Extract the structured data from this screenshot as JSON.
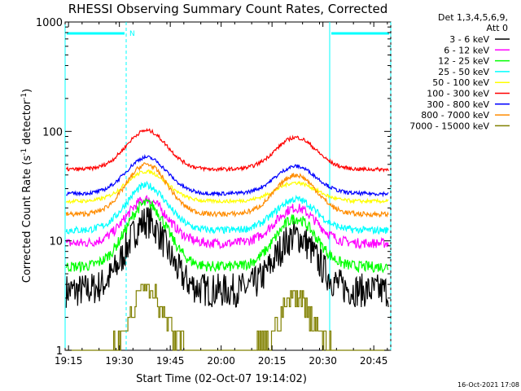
{
  "chart_data": {
    "type": "line",
    "title": "RHESSI Observing Summary Count Rates, Corrected",
    "xlabel": "Start Time (02-Oct-07 19:14:02)",
    "ylabel_main": "Corrected Count Rate (s",
    "ylabel_sup1": "-1",
    "ylabel_mid": " detector",
    "ylabel_sup2": "-1",
    "ylabel_end": ")",
    "ylog": true,
    "xlim_min": [
      0,
      96
    ],
    "ylim": [
      1,
      1000
    ],
    "x_ticks": [
      {
        "label": "19:15",
        "min": 1
      },
      {
        "label": "19:30",
        "min": 16
      },
      {
        "label": "19:45",
        "min": 31
      },
      {
        "label": "20:00",
        "min": 46
      },
      {
        "label": "20:15",
        "min": 61
      },
      {
        "label": "20:30",
        "min": 76
      },
      {
        "label": "20:45",
        "min": 91
      }
    ],
    "y_ticks": [
      {
        "label": "1",
        "value": 1
      },
      {
        "label": "10",
        "value": 10
      },
      {
        "label": "100",
        "value": 100
      },
      {
        "label": "1000",
        "value": 1000
      }
    ],
    "legend_header": [
      "Det 1,3,4,5,6,9,",
      "Att 0"
    ],
    "legend_position": "right",
    "series": [
      {
        "name": "3 - 6 keV",
        "color": "#000000",
        "base": 3.5,
        "peak1": 15,
        "peak2": 11,
        "noise": 0.2
      },
      {
        "name": "6 - 12 keV",
        "color": "#ff00ff",
        "base": 9.5,
        "peak1": 24,
        "peak2": 20,
        "noise": 0.08
      },
      {
        "name": "12 - 25 keV",
        "color": "#00ff00",
        "base": 5.8,
        "peak1": 22,
        "peak2": 16,
        "noise": 0.09
      },
      {
        "name": "25 - 50 keV",
        "color": "#00ffff",
        "base": 12.5,
        "peak1": 32,
        "peak2": 24,
        "noise": 0.06
      },
      {
        "name": "50 - 100 keV",
        "color": "#ffff00",
        "base": 23,
        "peak1": 43,
        "peak2": 34,
        "noise": 0.03
      },
      {
        "name": "100 - 300 keV",
        "color": "#ff0000",
        "base": 45,
        "peak1": 102,
        "peak2": 88,
        "noise": 0.03
      },
      {
        "name": "300 - 800 keV",
        "color": "#0000ff",
        "base": 27,
        "peak1": 58,
        "peak2": 48,
        "noise": 0.03
      },
      {
        "name": "800 - 7000 keV",
        "color": "#ff8c00",
        "base": 17.5,
        "peak1": 50,
        "peak2": 40,
        "noise": 0.04
      },
      {
        "name": "7000 - 15000 keV",
        "color": "#808000",
        "base": 1,
        "peak1": 4,
        "peak2": 3.5,
        "noise": 0
      }
    ],
    "night": [
      {
        "start_min": 0,
        "end_min": 18,
        "label": "N"
      },
      {
        "start_min": 78,
        "end_min": 96,
        "label": ""
      }
    ],
    "footer_date": "16-Oct-2021 17:08"
  }
}
